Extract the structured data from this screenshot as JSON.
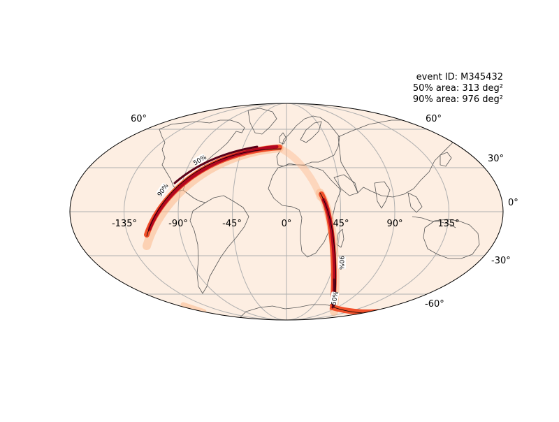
{
  "info": {
    "event_id": "event ID: M345432",
    "area_50": "50% area: 313 deg²",
    "area_90": "90% area: 976 deg²"
  },
  "map": {
    "projection": "mollweide",
    "background_color": "#fdeee2",
    "grid_color": "#b0b0b0",
    "coastline_color": "#555555",
    "outline_color": "#000000",
    "lon_labels": [
      "-135°",
      "-90°",
      "-45°",
      "0°",
      "45°",
      "90°",
      "135°"
    ],
    "lat_labels_left": [
      "60°"
    ],
    "lat_labels_right": [
      "60°",
      "30°",
      "0°",
      "-30°",
      "-60°"
    ]
  },
  "contours": {
    "label_50": "50%",
    "label_90": "90%",
    "colormap": [
      "#fdeee2",
      "#fcb98d",
      "#f1502a",
      "#b3071f",
      "#5a0018"
    ]
  }
}
